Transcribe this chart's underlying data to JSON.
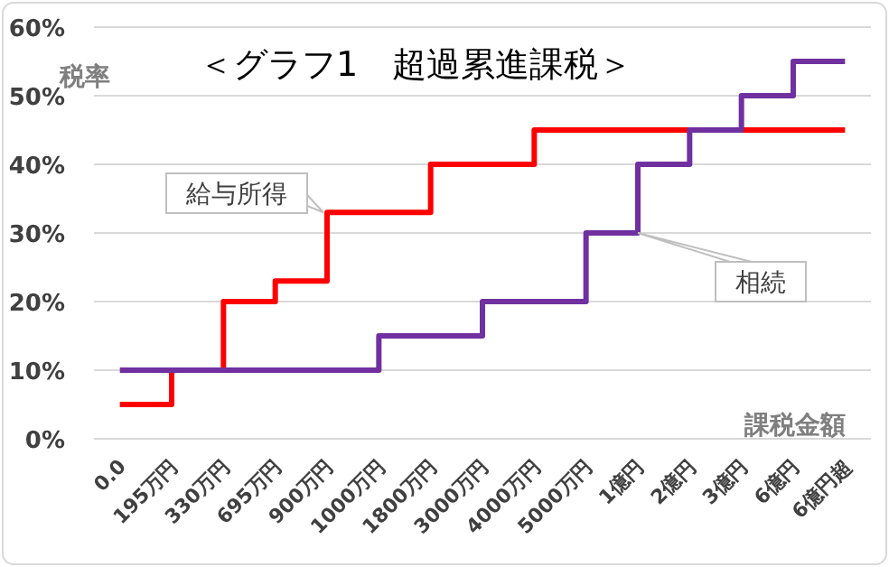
{
  "chart_data": {
    "type": "step",
    "title": "＜グラフ1　超過累進課税＞",
    "xlabel": "課税金額",
    "ylabel": "税率",
    "categories": [
      "0.0",
      "195万円",
      "330万円",
      "695万円",
      "900万円",
      "1000万円",
      "1800万円",
      "3000万円",
      "4000万円",
      "5000万円",
      "1億円",
      "2億円",
      "3億円",
      "6億円",
      "6億円超"
    ],
    "series": [
      {
        "name": "給与所得",
        "color": "#ff0000",
        "values": [
          5,
          10,
          20,
          23,
          33,
          33,
          40,
          40,
          45,
          45,
          45,
          45,
          45,
          45,
          45
        ]
      },
      {
        "name": "相続",
        "color": "#7030a0",
        "values": [
          10,
          10,
          10,
          10,
          10,
          15,
          15,
          20,
          20,
          30,
          40,
          45,
          50,
          55,
          55
        ]
      }
    ],
    "ylim": [
      0,
      60
    ],
    "yticks": [
      {
        "value": 0,
        "label": "0%"
      },
      {
        "value": 10,
        "label": "10%"
      },
      {
        "value": 20,
        "label": "20%"
      },
      {
        "value": 30,
        "label": "30%"
      },
      {
        "value": 40,
        "label": "40%"
      },
      {
        "value": 50,
        "label": "50%"
      },
      {
        "value": 60,
        "label": "60%"
      }
    ],
    "grid": "y",
    "legend": false
  }
}
